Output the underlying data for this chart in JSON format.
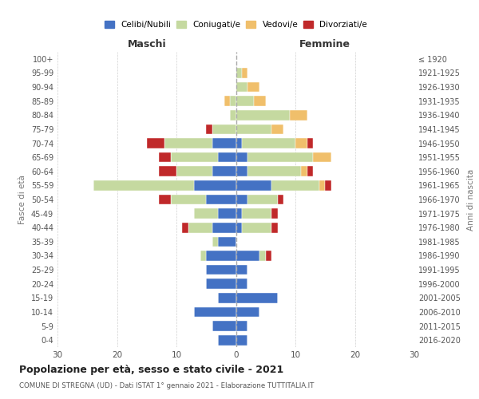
{
  "age_groups": [
    "0-4",
    "5-9",
    "10-14",
    "15-19",
    "20-24",
    "25-29",
    "30-34",
    "35-39",
    "40-44",
    "45-49",
    "50-54",
    "55-59",
    "60-64",
    "65-69",
    "70-74",
    "75-79",
    "80-84",
    "85-89",
    "90-94",
    "95-99",
    "100+"
  ],
  "birth_years": [
    "2016-2020",
    "2011-2015",
    "2006-2010",
    "2001-2005",
    "1996-2000",
    "1991-1995",
    "1986-1990",
    "1981-1985",
    "1976-1980",
    "1971-1975",
    "1966-1970",
    "1961-1965",
    "1956-1960",
    "1951-1955",
    "1946-1950",
    "1941-1945",
    "1936-1940",
    "1931-1935",
    "1926-1930",
    "1921-1925",
    "≤ 1920"
  ],
  "maschi": {
    "celibi": [
      3,
      4,
      7,
      3,
      5,
      5,
      5,
      3,
      4,
      3,
      5,
      7,
      4,
      3,
      4,
      0,
      0,
      0,
      0,
      0,
      0
    ],
    "coniugati": [
      0,
      0,
      0,
      0,
      0,
      0,
      1,
      1,
      4,
      4,
      6,
      17,
      6,
      8,
      8,
      4,
      1,
      1,
      0,
      0,
      0
    ],
    "vedovi": [
      0,
      0,
      0,
      0,
      0,
      0,
      0,
      0,
      0,
      0,
      0,
      0,
      0,
      0,
      0,
      0,
      0,
      1,
      0,
      0,
      0
    ],
    "divorziati": [
      0,
      0,
      0,
      0,
      0,
      0,
      0,
      0,
      1,
      0,
      2,
      0,
      3,
      2,
      3,
      1,
      0,
      0,
      0,
      0,
      0
    ]
  },
  "femmine": {
    "nubili": [
      2,
      2,
      4,
      7,
      2,
      2,
      4,
      0,
      1,
      1,
      2,
      6,
      2,
      2,
      1,
      0,
      0,
      0,
      0,
      0,
      0
    ],
    "coniugate": [
      0,
      0,
      0,
      0,
      0,
      0,
      1,
      0,
      5,
      5,
      5,
      8,
      9,
      11,
      9,
      6,
      9,
      3,
      2,
      1,
      0
    ],
    "vedove": [
      0,
      0,
      0,
      0,
      0,
      0,
      0,
      0,
      0,
      0,
      0,
      1,
      1,
      3,
      2,
      2,
      3,
      2,
      2,
      1,
      0
    ],
    "divorziate": [
      0,
      0,
      0,
      0,
      0,
      0,
      1,
      0,
      1,
      1,
      1,
      1,
      1,
      0,
      1,
      0,
      0,
      0,
      0,
      0,
      0
    ]
  },
  "colors": {
    "celibi": "#4472c4",
    "coniugati": "#c5d9a0",
    "vedovi": "#f0bf6b",
    "divorziati": "#c0292a"
  },
  "xlim": 30,
  "title": "Popolazione per età, sesso e stato civile - 2021",
  "subtitle": "COMUNE DI STREGNA (UD) - Dati ISTAT 1° gennaio 2021 - Elaborazione TUTTITALIA.IT",
  "legend_labels": [
    "Celibi/Nubili",
    "Coniugati/e",
    "Vedovi/e",
    "Divorziati/e"
  ],
  "xlabel_left": "Maschi",
  "xlabel_right": "Femmine",
  "ylabel_left": "Fasce di età",
  "ylabel_right": "Anni di nascita",
  "background_color": "#ffffff",
  "grid_color": "#cccccc"
}
